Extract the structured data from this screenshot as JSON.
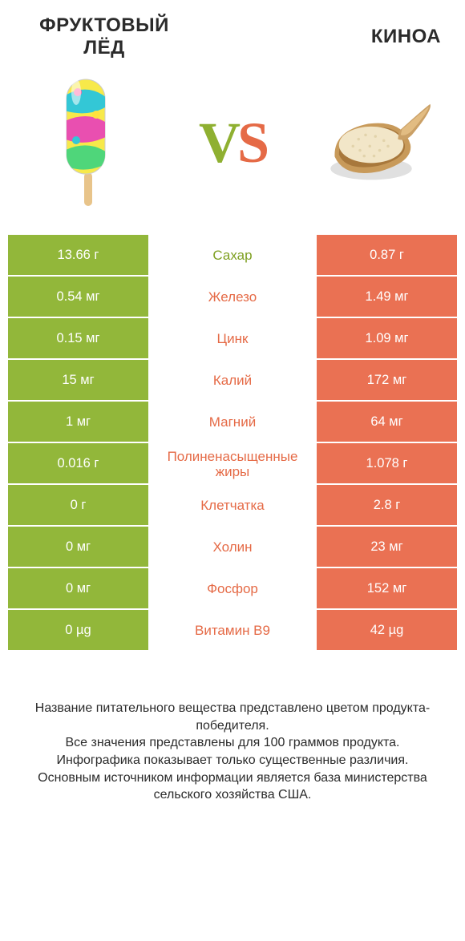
{
  "header": {
    "left_title_l1": "ФРУКТОВЫЙ",
    "left_title_l2": "ЛЁД",
    "right_title": "КИНОА",
    "vs_v": "V",
    "vs_s": "S"
  },
  "colors": {
    "left_bar": "#92b73a",
    "right_bar": "#ea7153",
    "mid_green": "#7fa022",
    "mid_orange": "#e56a46",
    "background": "#ffffff"
  },
  "table": {
    "rows": [
      {
        "left": "13.66 г",
        "label": "Сахар",
        "right": "0.87 г",
        "winner": "left"
      },
      {
        "left": "0.54 мг",
        "label": "Железо",
        "right": "1.49 мг",
        "winner": "right"
      },
      {
        "left": "0.15 мг",
        "label": "Цинк",
        "right": "1.09 мг",
        "winner": "right"
      },
      {
        "left": "15 мг",
        "label": "Калий",
        "right": "172 мг",
        "winner": "right"
      },
      {
        "left": "1 мг",
        "label": "Магний",
        "right": "64 мг",
        "winner": "right"
      },
      {
        "left": "0.016 г",
        "label": "Полиненасыщенные жиры",
        "right": "1.078 г",
        "winner": "right"
      },
      {
        "left": "0 г",
        "label": "Клетчатка",
        "right": "2.8 г",
        "winner": "right"
      },
      {
        "left": "0 мг",
        "label": "Холин",
        "right": "23 мг",
        "winner": "right"
      },
      {
        "left": "0 мг",
        "label": "Фосфор",
        "right": "152 мг",
        "winner": "right"
      },
      {
        "left": "0 µg",
        "label": "Витамин B9",
        "right": "42 µg",
        "winner": "right"
      }
    ]
  },
  "footer": {
    "line1": "Название питательного вещества представлено цветом продукта-победителя.",
    "line2": "Все значения представлены для 100 граммов продукта.",
    "line3": "Инфографика показывает только существенные различия.",
    "line4": "Основным источником информации является база министерства сельского хозяйства США."
  }
}
